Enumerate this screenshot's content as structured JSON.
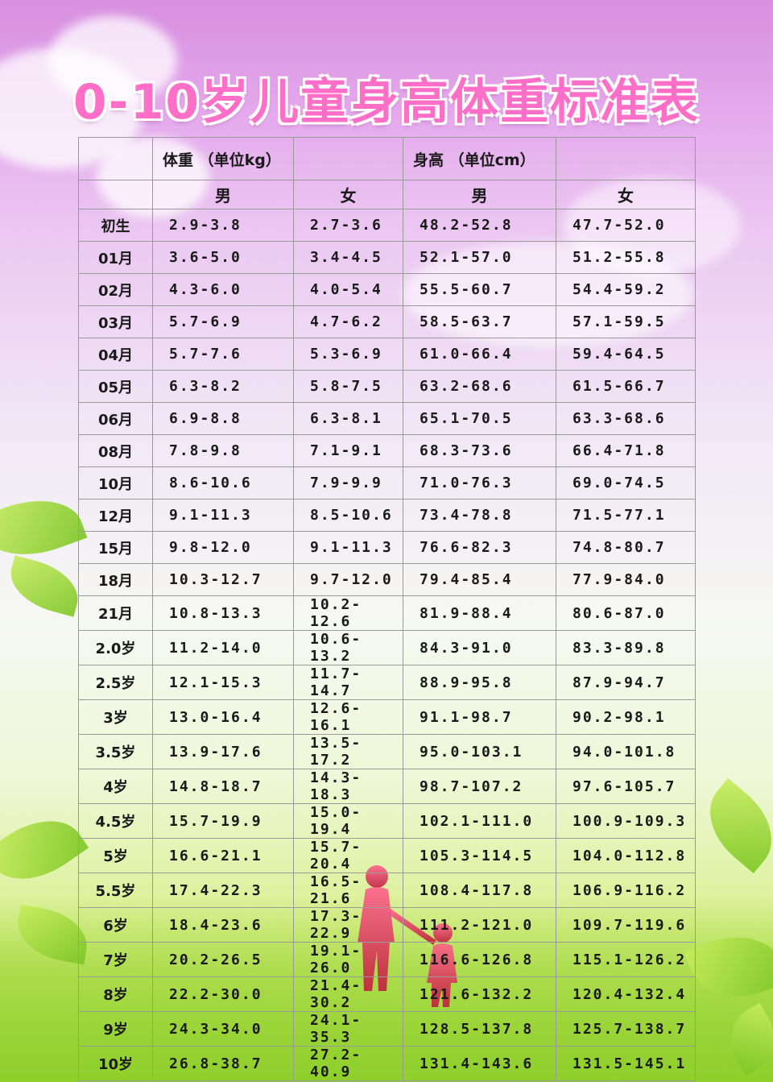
{
  "title": "0-10岁儿童身高体重标准表",
  "header": {
    "weight": "体重 （单位kg）",
    "height": "身高 （单位cm）",
    "male": "男",
    "female": "女"
  },
  "rows": [
    {
      "age": "初生",
      "wm": "2.9-3.8",
      "wf": "2.7-3.6",
      "hm": "48.2-52.8",
      "hf": "47.7-52.0"
    },
    {
      "age": "01月",
      "wm": "3.6-5.0",
      "wf": "3.4-4.5",
      "hm": "52.1-57.0",
      "hf": "51.2-55.8"
    },
    {
      "age": "02月",
      "wm": "4.3-6.0",
      "wf": "4.0-5.4",
      "hm": "55.5-60.7",
      "hf": "54.4-59.2"
    },
    {
      "age": "03月",
      "wm": "5.7-6.9",
      "wf": "4.7-6.2",
      "hm": "58.5-63.7",
      "hf": "57.1-59.5"
    },
    {
      "age": "04月",
      "wm": "5.7-7.6",
      "wf": "5.3-6.9",
      "hm": "61.0-66.4",
      "hf": "59.4-64.5"
    },
    {
      "age": "05月",
      "wm": "6.3-8.2",
      "wf": "5.8-7.5",
      "hm": "63.2-68.6",
      "hf": "61.5-66.7"
    },
    {
      "age": "06月",
      "wm": "6.9-8.8",
      "wf": "6.3-8.1",
      "hm": "65.1-70.5",
      "hf": "63.3-68.6"
    },
    {
      "age": "08月",
      "wm": "7.8-9.8",
      "wf": "7.1-9.1",
      "hm": "68.3-73.6",
      "hf": "66.4-71.8"
    },
    {
      "age": "10月",
      "wm": "8.6-10.6",
      "wf": "7.9-9.9",
      "hm": "71.0-76.3",
      "hf": "69.0-74.5"
    },
    {
      "age": "12月",
      "wm": "9.1-11.3",
      "wf": "8.5-10.6",
      "hm": "73.4-78.8",
      "hf": "71.5-77.1"
    },
    {
      "age": "15月",
      "wm": "9.8-12.0",
      "wf": "9.1-11.3",
      "hm": "76.6-82.3",
      "hf": "74.8-80.7"
    },
    {
      "age": "18月",
      "wm": "10.3-12.7",
      "wf": "9.7-12.0",
      "hm": "79.4-85.4",
      "hf": "77.9-84.0"
    },
    {
      "age": "21月",
      "wm": "10.8-13.3",
      "wf": "10.2-12.6",
      "hm": "81.9-88.4",
      "hf": "80.6-87.0"
    },
    {
      "age": "2.0岁",
      "wm": "11.2-14.0",
      "wf": "10.6-13.2",
      "hm": "84.3-91.0",
      "hf": "83.3-89.8"
    },
    {
      "age": "2.5岁",
      "wm": "12.1-15.3",
      "wf": "11.7-14.7",
      "hm": "88.9-95.8",
      "hf": "87.9-94.7"
    },
    {
      "age": "3岁",
      "wm": "13.0-16.4",
      "wf": "12.6-16.1",
      "hm": "91.1-98.7",
      "hf": "90.2-98.1"
    },
    {
      "age": "3.5岁",
      "wm": "13.9-17.6",
      "wf": "13.5-17.2",
      "hm": "95.0-103.1",
      "hf": "94.0-101.8"
    },
    {
      "age": "4岁",
      "wm": "14.8-18.7",
      "wf": "14.3-18.3",
      "hm": "98.7-107.2",
      "hf": "97.6-105.7"
    },
    {
      "age": "4.5岁",
      "wm": "15.7-19.9",
      "wf": "15.0-19.4",
      "hm": "102.1-111.0",
      "hf": "100.9-109.3"
    },
    {
      "age": "5岁",
      "wm": "16.6-21.1",
      "wf": "15.7-20.4",
      "hm": "105.3-114.5",
      "hf": "104.0-112.8"
    },
    {
      "age": "5.5岁",
      "wm": "17.4-22.3",
      "wf": "16.5-21.6",
      "hm": "108.4-117.8",
      "hf": "106.9-116.2"
    },
    {
      "age": "6岁",
      "wm": "18.4-23.6",
      "wf": "17.3-22.9",
      "hm": "111.2-121.0",
      "hf": "109.7-119.6"
    },
    {
      "age": "7岁",
      "wm": "20.2-26.5",
      "wf": "19.1-26.0",
      "hm": "116.6-126.8",
      "hf": "115.1-126.2"
    },
    {
      "age": "8岁",
      "wm": "22.2-30.0",
      "wf": "21.4-30.2",
      "hm": "121.6-132.2",
      "hf": "120.4-132.4"
    },
    {
      "age": "9岁",
      "wm": "24.3-34.0",
      "wf": "24.1-35.3",
      "hm": "128.5-137.8",
      "hf": "125.7-138.7"
    },
    {
      "age": "10岁",
      "wm": "26.8-38.7",
      "wf": "27.2-40.9",
      "hm": "131.4-143.6",
      "hf": "131.5-145.1"
    }
  ]
}
